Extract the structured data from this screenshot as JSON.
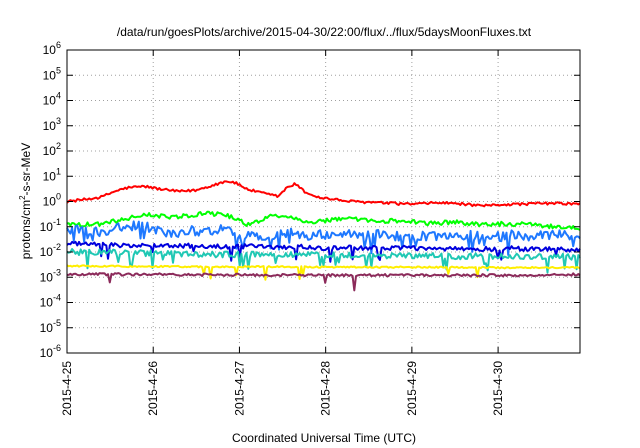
{
  "chart_data": {
    "type": "line",
    "title": "/data/run/goesPlots/archive/2015-04-30/22:00/flux/../flux/5daysMoonFluxes.txt",
    "xlabel": "Coordinated Universal Time (UTC)",
    "ylabel_parts": [
      "protons/cm",
      "2",
      "-s-sr-MeV"
    ],
    "xlim": [
      0,
      5.95
    ],
    "x_unit": "days since 2015-4-25 00:00 UTC",
    "ylim": [
      1e-06,
      1000000.0
    ],
    "yscale": "log",
    "grid": true,
    "x_ticks": [
      {
        "x": 0,
        "label": "2015-4-25"
      },
      {
        "x": 1,
        "label": "2015-4-26"
      },
      {
        "x": 2,
        "label": "2015-4-27"
      },
      {
        "x": 3,
        "label": "2015-4-28"
      },
      {
        "x": 4,
        "label": "2015-4-29"
      },
      {
        "x": 5,
        "label": "2015-4-30"
      }
    ],
    "y_ticks": [
      {
        "value": 1e-06,
        "base": "10",
        "exp": "-6"
      },
      {
        "value": 1e-05,
        "base": "10",
        "exp": "-5"
      },
      {
        "value": 0.0001,
        "base": "10",
        "exp": "-4"
      },
      {
        "value": 0.001,
        "base": "10",
        "exp": "-3"
      },
      {
        "value": 0.01,
        "base": "10",
        "exp": "-2"
      },
      {
        "value": 0.1,
        "base": "10",
        "exp": "-1"
      },
      {
        "value": 1,
        "base": "10",
        "exp": "0"
      },
      {
        "value": 10,
        "base": "10",
        "exp": "1"
      },
      {
        "value": 100,
        "base": "10",
        "exp": "2"
      },
      {
        "value": 1000,
        "base": "10",
        "exp": "3"
      },
      {
        "value": 10000,
        "base": "10",
        "exp": "4"
      },
      {
        "value": 100000,
        "base": "10",
        "exp": "5"
      },
      {
        "value": 1000000,
        "base": "10",
        "exp": "6"
      }
    ],
    "series": [
      {
        "color": "#ff0000",
        "points": [
          [
            0,
            1.0
          ],
          [
            0.2,
            1.2
          ],
          [
            0.4,
            1.5
          ],
          [
            0.55,
            2.5
          ],
          [
            0.7,
            3.5
          ],
          [
            0.9,
            4.0
          ],
          [
            1.1,
            3.0
          ],
          [
            1.3,
            2.5
          ],
          [
            1.5,
            2.8
          ],
          [
            1.7,
            4.5
          ],
          [
            1.85,
            6.5
          ],
          [
            1.95,
            5.5
          ],
          [
            2.1,
            3.0
          ],
          [
            2.3,
            2.0
          ],
          [
            2.45,
            1.6
          ],
          [
            2.55,
            3.5
          ],
          [
            2.65,
            5.0
          ],
          [
            2.75,
            2.5
          ],
          [
            2.9,
            1.5
          ],
          [
            3.1,
            1.2
          ],
          [
            3.3,
            1.0
          ],
          [
            3.6,
            0.9
          ],
          [
            3.9,
            0.8
          ],
          [
            4.1,
            0.8
          ],
          [
            4.3,
            0.9
          ],
          [
            4.6,
            0.8
          ],
          [
            4.8,
            0.65
          ],
          [
            5.0,
            0.75
          ],
          [
            5.3,
            0.8
          ],
          [
            5.6,
            0.85
          ],
          [
            5.95,
            0.8
          ]
        ]
      },
      {
        "color": "#00ff00",
        "points": [
          [
            0,
            0.14
          ],
          [
            0.2,
            0.12
          ],
          [
            0.4,
            0.13
          ],
          [
            0.6,
            0.18
          ],
          [
            0.8,
            0.25
          ],
          [
            1.0,
            0.3
          ],
          [
            1.2,
            0.22
          ],
          [
            1.4,
            0.28
          ],
          [
            1.6,
            0.35
          ],
          [
            1.8,
            0.3
          ],
          [
            1.95,
            0.22
          ],
          [
            2.1,
            0.12
          ],
          [
            2.25,
            0.18
          ],
          [
            2.4,
            0.3
          ],
          [
            2.6,
            0.25
          ],
          [
            2.8,
            0.15
          ],
          [
            3.0,
            0.18
          ],
          [
            3.3,
            0.2
          ],
          [
            3.6,
            0.16
          ],
          [
            3.9,
            0.18
          ],
          [
            4.2,
            0.14
          ],
          [
            4.5,
            0.15
          ],
          [
            4.8,
            0.12
          ],
          [
            5.1,
            0.13
          ],
          [
            5.4,
            0.12
          ],
          [
            5.7,
            0.1
          ],
          [
            5.95,
            0.09
          ]
        ]
      },
      {
        "color": "#1e78ff",
        "points": [
          [
            0,
            0.07
          ],
          [
            0.2,
            0.08
          ],
          [
            0.4,
            0.06
          ],
          [
            0.6,
            0.09
          ],
          [
            0.8,
            0.12
          ],
          [
            1.0,
            0.08
          ],
          [
            1.2,
            0.05
          ],
          [
            1.4,
            0.07
          ],
          [
            1.6,
            0.06
          ],
          [
            1.8,
            0.08
          ],
          [
            2.0,
            0.05
          ],
          [
            2.2,
            0.04
          ],
          [
            2.4,
            0.05
          ],
          [
            2.6,
            0.06
          ],
          [
            2.8,
            0.04
          ],
          [
            3.0,
            0.05
          ],
          [
            3.2,
            0.06
          ],
          [
            3.4,
            0.04
          ],
          [
            3.6,
            0.05
          ],
          [
            3.8,
            0.04
          ],
          [
            4.0,
            0.05
          ],
          [
            4.2,
            0.04
          ],
          [
            4.4,
            0.05
          ],
          [
            4.6,
            0.04
          ],
          [
            4.8,
            0.05
          ],
          [
            5.0,
            0.04
          ],
          [
            5.2,
            0.05
          ],
          [
            5.4,
            0.04
          ],
          [
            5.6,
            0.05
          ],
          [
            5.8,
            0.045
          ],
          [
            5.95,
            0.05
          ]
        ]
      },
      {
        "color": "#0000dd",
        "points": [
          [
            0,
            0.022
          ],
          [
            0.3,
            0.02
          ],
          [
            0.6,
            0.018
          ],
          [
            0.9,
            0.02
          ],
          [
            1.2,
            0.017
          ],
          [
            1.5,
            0.018
          ],
          [
            1.8,
            0.016
          ],
          [
            2.1,
            0.017
          ],
          [
            2.4,
            0.015
          ],
          [
            2.7,
            0.016
          ],
          [
            3.0,
            0.014
          ],
          [
            3.3,
            0.015
          ],
          [
            3.6,
            0.014
          ],
          [
            3.9,
            0.015
          ],
          [
            4.2,
            0.013
          ],
          [
            4.5,
            0.014
          ],
          [
            4.8,
            0.013
          ],
          [
            5.1,
            0.014
          ],
          [
            5.4,
            0.013
          ],
          [
            5.7,
            0.013
          ],
          [
            5.95,
            0.012
          ]
        ]
      },
      {
        "color": "#20c8b4",
        "points": [
          [
            0,
            0.01
          ],
          [
            0.4,
            0.01
          ],
          [
            0.8,
            0.009
          ],
          [
            1.2,
            0.009
          ],
          [
            1.6,
            0.008
          ],
          [
            2.0,
            0.008
          ],
          [
            2.4,
            0.008
          ],
          [
            2.8,
            0.0075
          ],
          [
            3.2,
            0.0075
          ],
          [
            3.6,
            0.007
          ],
          [
            4.0,
            0.007
          ],
          [
            4.4,
            0.0068
          ],
          [
            4.8,
            0.0068
          ],
          [
            5.2,
            0.0066
          ],
          [
            5.6,
            0.0065
          ],
          [
            5.95,
            0.0065
          ]
        ]
      },
      {
        "color": "#ffee00",
        "points": [
          [
            0,
            0.0028
          ],
          [
            0.5,
            0.0027
          ],
          [
            1.0,
            0.0027
          ],
          [
            1.5,
            0.0026
          ],
          [
            2.0,
            0.0026
          ],
          [
            2.5,
            0.0026
          ],
          [
            3.0,
            0.0025
          ],
          [
            3.5,
            0.0025
          ],
          [
            4.0,
            0.0025
          ],
          [
            4.5,
            0.0025
          ],
          [
            5.0,
            0.0024
          ],
          [
            5.5,
            0.0024
          ],
          [
            5.95,
            0.0024
          ]
        ]
      },
      {
        "color": "#8b2a5a",
        "points": [
          [
            0,
            0.0013
          ],
          [
            0.5,
            0.0013
          ],
          [
            1.0,
            0.0013
          ],
          [
            1.5,
            0.00125
          ],
          [
            2.0,
            0.00125
          ],
          [
            2.5,
            0.0012
          ],
          [
            3.0,
            0.0012
          ],
          [
            3.5,
            0.0012
          ],
          [
            4.0,
            0.0012
          ],
          [
            4.5,
            0.0012
          ],
          [
            5.0,
            0.0012
          ],
          [
            5.5,
            0.00125
          ],
          [
            5.95,
            0.0013
          ]
        ]
      }
    ]
  }
}
